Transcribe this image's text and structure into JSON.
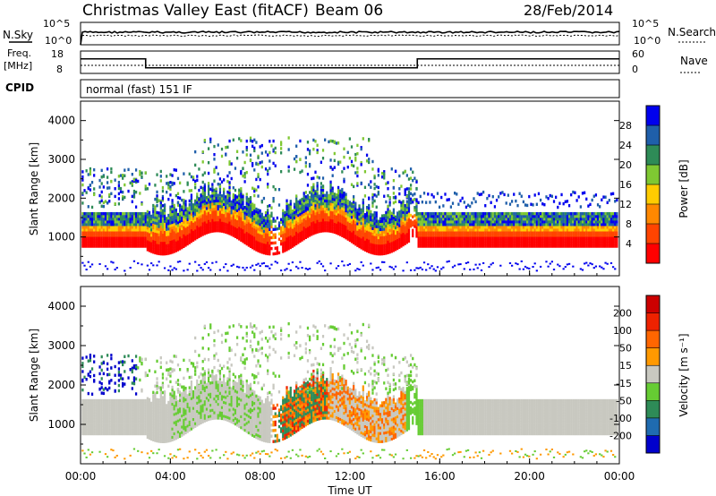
{
  "header": {
    "title": "Christmas Valley East (fitACF)",
    "beam": "Beam 06",
    "date": "28/Feb/2014"
  },
  "strips": {
    "nsky_label": "N.Sky",
    "nsearch_label": "N.Search",
    "freq_label_1": "Freq.",
    "freq_label_2": "[MHz]",
    "nave_label": "Nave",
    "cpid_label": "CPID",
    "noise_left_ticks": [
      "10^5",
      "10^0"
    ],
    "noise_right_ticks": [
      "10^5",
      "10^0"
    ],
    "freq_left_ticks": [
      "18",
      "8"
    ],
    "freq_right_ticks": [
      "60",
      "0"
    ],
    "cpid_text": "normal (fast) 151 IF"
  },
  "colorbars": {
    "power": {
      "label": "Power [dB]",
      "ticks": [
        "28",
        "24",
        "20",
        "16",
        "12",
        "8",
        "4"
      ],
      "colors": [
        "#ff0000",
        "#ff4400",
        "#ff8800",
        "#ffcc00",
        "#7fc832",
        "#2e8b57",
        "#1f5faa",
        "#0000ee"
      ]
    },
    "velocity": {
      "label": "Velocity [m s⁻¹]",
      "ticks": [
        "200",
        "100",
        "50",
        "15",
        "-15",
        "-50",
        "-100",
        "-200"
      ],
      "colors": [
        "#0000cc",
        "#1f6bb0",
        "#2e8b57",
        "#66cc33",
        "#c8c8c0",
        "#ff9900",
        "#ff6600",
        "#ee2200",
        "#cc0000"
      ]
    }
  },
  "chart_data": {
    "type": "heatmap",
    "title": "Christmas Valley East (fitACF)",
    "xlabel": "Time UT",
    "x_ticks": [
      "00:00",
      "04:00",
      "08:00",
      "12:00",
      "16:00",
      "20:00",
      "00:00"
    ],
    "xlim": [
      0,
      24
    ],
    "y_ticks": [
      "4000",
      "3000",
      "2000",
      "1000"
    ],
    "ylim": [
      0,
      4500
    ],
    "panels": [
      {
        "name": "power",
        "ylabel": "Slant Range [km]",
        "cbar_label": "Power [dB]",
        "cbar_ticks": [
          28,
          24,
          20,
          16,
          12,
          8,
          4
        ]
      },
      {
        "name": "velocity",
        "ylabel": "Slant Range [km]",
        "cbar_label": "Velocity [m s-1]",
        "cbar_ticks": [
          200,
          100,
          50,
          15,
          -15,
          -50,
          -100,
          -200
        ]
      }
    ],
    "frequency_mhz": [
      {
        "start_hour": 0,
        "end_hour": 2.9,
        "value": 14.5
      },
      {
        "start_hour": 2.9,
        "end_hour": 15,
        "value": 10.5
      },
      {
        "start_hour": 15,
        "end_hour": 24,
        "value": 14.5
      }
    ]
  }
}
